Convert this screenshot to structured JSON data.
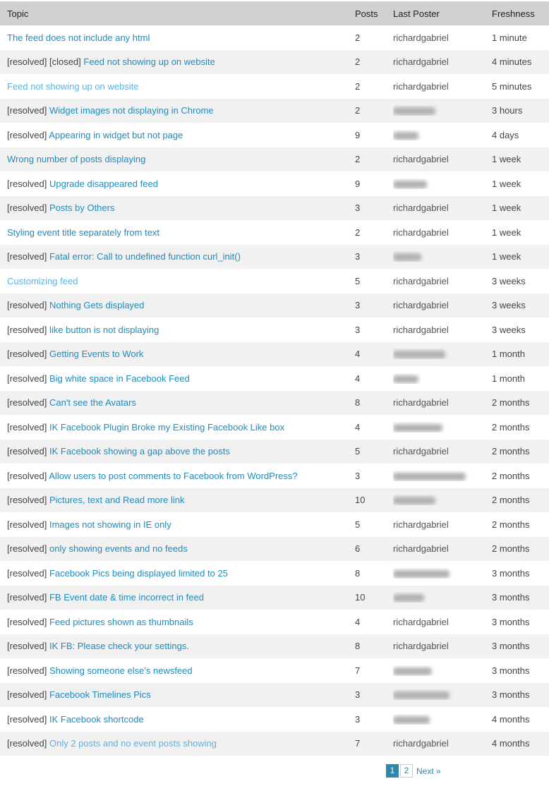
{
  "table": {
    "columns": [
      {
        "key": "topic",
        "label": "Topic"
      },
      {
        "key": "posts",
        "label": "Posts"
      },
      {
        "key": "last_poster",
        "label": "Last Poster"
      },
      {
        "key": "freshness",
        "label": "Freshness"
      }
    ],
    "rows": [
      {
        "prefix": "",
        "title": "The feed does not include any html",
        "visited": false,
        "posts": "2",
        "last_poster": "richardgabriel",
        "poster_redacted": false,
        "redaction_width": 0,
        "freshness": "1 minute"
      },
      {
        "prefix": "[resolved] [closed]",
        "title": "Feed not showing up on website",
        "visited": false,
        "posts": "2",
        "last_poster": "richardgabriel",
        "poster_redacted": false,
        "redaction_width": 0,
        "freshness": "4 minutes"
      },
      {
        "prefix": "",
        "title": "Feed not showing up on website",
        "visited": true,
        "posts": "2",
        "last_poster": "richardgabriel",
        "poster_redacted": false,
        "redaction_width": 0,
        "freshness": "5 minutes"
      },
      {
        "prefix": "[resolved]",
        "title": "Widget images not displaying in Chrome",
        "visited": false,
        "posts": "2",
        "last_poster": null,
        "poster_redacted": true,
        "redaction_width": 60,
        "freshness": "3 hours"
      },
      {
        "prefix": "[resolved]",
        "title": "Appearing in widget but not page",
        "visited": false,
        "posts": "9",
        "last_poster": null,
        "poster_redacted": true,
        "redaction_width": 36,
        "freshness": "4 days"
      },
      {
        "prefix": "",
        "title": "Wrong number of posts displaying",
        "visited": false,
        "posts": "2",
        "last_poster": "richardgabriel",
        "poster_redacted": false,
        "redaction_width": 0,
        "freshness": "1 week"
      },
      {
        "prefix": "[resolved]",
        "title": "Upgrade disappeared feed",
        "visited": false,
        "posts": "9",
        "last_poster": null,
        "poster_redacted": true,
        "redaction_width": 48,
        "freshness": "1 week"
      },
      {
        "prefix": "[resolved]",
        "title": "Posts by Others",
        "visited": false,
        "posts": "3",
        "last_poster": "richardgabriel",
        "poster_redacted": false,
        "redaction_width": 0,
        "freshness": "1 week"
      },
      {
        "prefix": "",
        "title": "Styling event title separately from text",
        "visited": false,
        "posts": "2",
        "last_poster": "richardgabriel",
        "poster_redacted": false,
        "redaction_width": 0,
        "freshness": "1 week"
      },
      {
        "prefix": "[resolved]",
        "title": "Fatal error: Call to undefined function curl_init()",
        "visited": false,
        "posts": "3",
        "last_poster": null,
        "poster_redacted": true,
        "redaction_width": 40,
        "freshness": "1 week"
      },
      {
        "prefix": "",
        "title": "Customizing feed",
        "visited": true,
        "posts": "5",
        "last_poster": "richardgabriel",
        "poster_redacted": false,
        "redaction_width": 0,
        "freshness": "3 weeks"
      },
      {
        "prefix": "[resolved]",
        "title": "Nothing Gets displayed",
        "visited": false,
        "posts": "3",
        "last_poster": "richardgabriel",
        "poster_redacted": false,
        "redaction_width": 0,
        "freshness": "3 weeks"
      },
      {
        "prefix": "[resolved]",
        "title": "like button is not displaying",
        "visited": false,
        "posts": "3",
        "last_poster": "richardgabriel",
        "poster_redacted": false,
        "redaction_width": 0,
        "freshness": "3 weeks"
      },
      {
        "prefix": "[resolved]",
        "title": "Getting Events to Work",
        "visited": false,
        "posts": "4",
        "last_poster": null,
        "poster_redacted": true,
        "redaction_width": 74,
        "freshness": "1 month"
      },
      {
        "prefix": "[resolved]",
        "title": "Big white space in Facebook Feed",
        "visited": false,
        "posts": "4",
        "last_poster": null,
        "poster_redacted": true,
        "redaction_width": 36,
        "freshness": "1 month"
      },
      {
        "prefix": "[resolved]",
        "title": "Can't see the Avatars",
        "visited": false,
        "posts": "8",
        "last_poster": "richardgabriel",
        "poster_redacted": false,
        "redaction_width": 0,
        "freshness": "2 months"
      },
      {
        "prefix": "[resolved]",
        "title": "IK Facebook Plugin Broke my Existing Facebook Like box",
        "visited": false,
        "posts": "4",
        "last_poster": null,
        "poster_redacted": true,
        "redaction_width": 70,
        "freshness": "2 months"
      },
      {
        "prefix": "[resolved]",
        "title": "IK Facebook showing a gap above the posts",
        "visited": false,
        "posts": "5",
        "last_poster": "richardgabriel",
        "poster_redacted": false,
        "redaction_width": 0,
        "freshness": "2 months"
      },
      {
        "prefix": "[resolved]",
        "title": "Allow users to post comments to Facebook from WordPress?",
        "visited": false,
        "posts": "3",
        "last_poster": null,
        "poster_redacted": true,
        "redaction_width": 103,
        "freshness": "2 months"
      },
      {
        "prefix": "[resolved]",
        "title": "Pictures, text and Read more link",
        "visited": false,
        "posts": "10",
        "last_poster": null,
        "poster_redacted": true,
        "redaction_width": 60,
        "freshness": "2 months"
      },
      {
        "prefix": "[resolved]",
        "title": "Images not showing in IE only",
        "visited": false,
        "posts": "5",
        "last_poster": "richardgabriel",
        "poster_redacted": false,
        "redaction_width": 0,
        "freshness": "2 months"
      },
      {
        "prefix": "[resolved]",
        "title": "only showing events and no feeds",
        "visited": false,
        "posts": "6",
        "last_poster": "richardgabriel",
        "poster_redacted": false,
        "redaction_width": 0,
        "freshness": "2 months"
      },
      {
        "prefix": "[resolved]",
        "title": "Facebook Pics being displayed limited to 25",
        "visited": false,
        "posts": "8",
        "last_poster": null,
        "poster_redacted": true,
        "redaction_width": 80,
        "freshness": "3 months"
      },
      {
        "prefix": "[resolved]",
        "title": "FB Event date & time incorrect in feed",
        "visited": false,
        "posts": "10",
        "last_poster": null,
        "poster_redacted": true,
        "redaction_width": 44,
        "freshness": "3 months"
      },
      {
        "prefix": "[resolved]",
        "title": "Feed pictures shown as thumbnails",
        "visited": false,
        "posts": "4",
        "last_poster": "richardgabriel",
        "poster_redacted": false,
        "redaction_width": 0,
        "freshness": "3 months"
      },
      {
        "prefix": "[resolved]",
        "title": "IK FB: Please check your settings.",
        "visited": false,
        "posts": "8",
        "last_poster": "richardgabriel",
        "poster_redacted": false,
        "redaction_width": 0,
        "freshness": "3 months"
      },
      {
        "prefix": "[resolved]",
        "title": "Showing someone else's newsfeed",
        "visited": false,
        "posts": "7",
        "last_poster": null,
        "poster_redacted": true,
        "redaction_width": 55,
        "freshness": "3 months"
      },
      {
        "prefix": "[resolved]",
        "title": "Facebook Timelines Pics",
        "visited": false,
        "posts": "3",
        "last_poster": null,
        "poster_redacted": true,
        "redaction_width": 80,
        "freshness": "3 months"
      },
      {
        "prefix": "[resolved]",
        "title": "IK Facebook shortcode",
        "visited": false,
        "posts": "3",
        "last_poster": null,
        "poster_redacted": true,
        "redaction_width": 52,
        "freshness": "4 months"
      },
      {
        "prefix": "[resolved]",
        "title": "Only 2 posts and no event posts showing",
        "visited": true,
        "posts": "7",
        "last_poster": "richardgabriel",
        "poster_redacted": false,
        "redaction_width": 0,
        "freshness": "4 months"
      }
    ]
  },
  "pagination": {
    "pages": [
      {
        "label": "1",
        "current": true
      },
      {
        "label": "2",
        "current": false
      }
    ],
    "next_label": "Next »"
  },
  "colors": {
    "link": "#1e8cbe",
    "link_visited": "#5cb3e4",
    "header_bg": "#d0d0d0",
    "row_alt_bg": "#f1f1f1",
    "body_text": "#444444",
    "pagination_active_bg": "#2f87ab"
  }
}
